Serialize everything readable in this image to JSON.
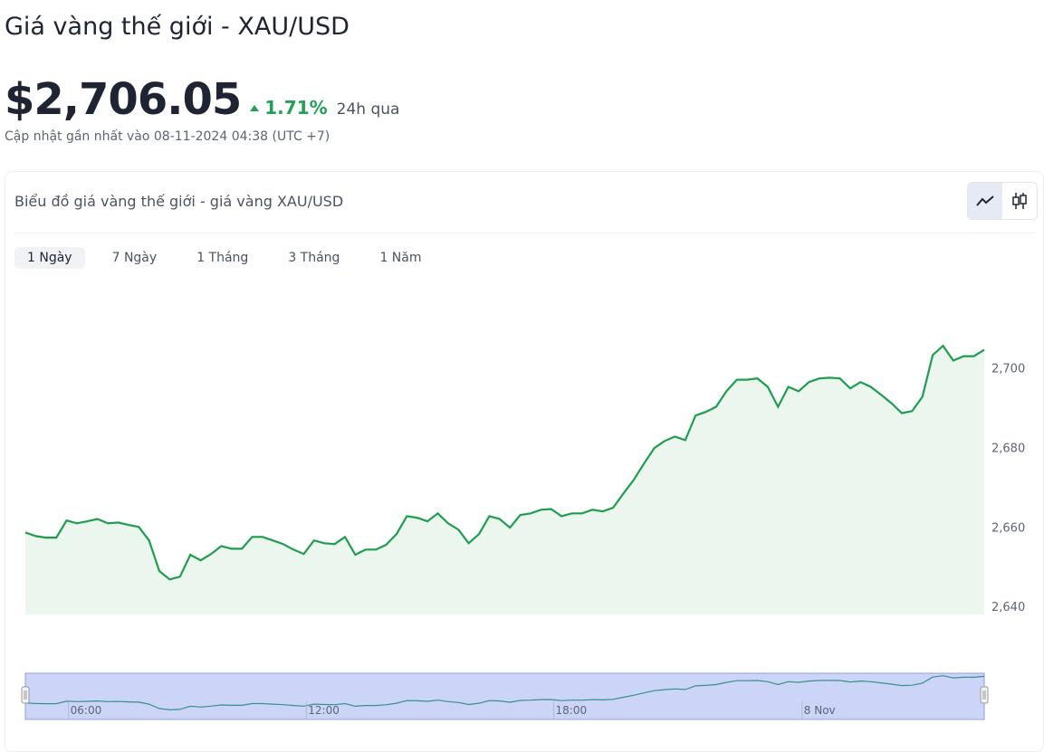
{
  "header": {
    "title": "Giá vàng thế giới - XAU/USD",
    "price": "$2,706.05",
    "change": "1.71%",
    "period": "24h qua",
    "updated": "Cập nhật gần nhất vào 08-11-2024 04:38 (UTC +7)"
  },
  "card": {
    "title": "Biểu đồ giá vàng thế giới - giá vàng XAU/USD",
    "tabs": [
      "1 Ngày",
      "7 Ngày",
      "1 Tháng",
      "3 Tháng",
      "1 Năm"
    ]
  },
  "chart_data": {
    "type": "line",
    "color": "#1f9d4f",
    "area_color": "#eaf6ee",
    "values": [
      2658.6,
      2657.7,
      2657.3,
      2657.3,
      2661.6,
      2660.9,
      2661.4,
      2662.0,
      2660.9,
      2661.1,
      2660.5,
      2660.0,
      2656.6,
      2648.9,
      2646.8,
      2647.5,
      2653.0,
      2651.6,
      2653.2,
      2655.2,
      2654.5,
      2654.5,
      2657.5,
      2657.5,
      2656.6,
      2655.7,
      2654.3,
      2653.2,
      2656.6,
      2655.9,
      2655.7,
      2657.5,
      2653.0,
      2654.3,
      2654.3,
      2655.5,
      2658.2,
      2662.7,
      2662.3,
      2661.4,
      2663.4,
      2660.9,
      2659.3,
      2655.9,
      2658.2,
      2662.7,
      2662.0,
      2659.8,
      2663.0,
      2663.4,
      2664.3,
      2664.5,
      2662.7,
      2663.4,
      2663.4,
      2664.3,
      2663.9,
      2664.8,
      2668.4,
      2671.8,
      2675.9,
      2679.8,
      2681.6,
      2682.7,
      2681.8,
      2688.0,
      2688.9,
      2690.2,
      2694.1,
      2697.0,
      2697.0,
      2697.3,
      2695.2,
      2690.2,
      2695.2,
      2694.1,
      2696.4,
      2697.3,
      2697.5,
      2697.3,
      2694.8,
      2696.4,
      2695.2,
      2693.2,
      2691.1,
      2688.6,
      2689.1,
      2692.7,
      2703.2,
      2705.5,
      2701.8,
      2702.9,
      2702.9,
      2704.5
    ],
    "ylim": [
      2638,
      2716
    ],
    "yticks": [
      {
        "value": 2640,
        "label": "2,640"
      },
      {
        "value": 2660,
        "label": "2,660"
      },
      {
        "value": 2680,
        "label": "2,680"
      },
      {
        "value": 2700,
        "label": "2,700"
      }
    ],
    "navigator_labels": [
      "06:00",
      "12:00",
      "18:00",
      "8 Nov"
    ]
  }
}
